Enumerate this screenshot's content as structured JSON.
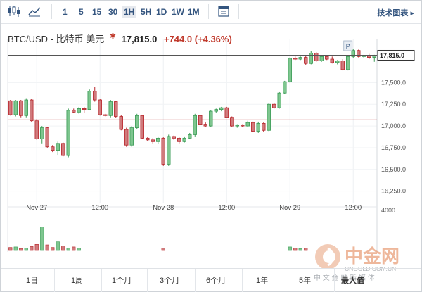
{
  "toolbar": {
    "candle_icon": "candlestick-icon",
    "area_icon": "area-chart-icon",
    "intervals": [
      "1",
      "5",
      "15",
      "30",
      "1H",
      "5H",
      "1D",
      "1W",
      "1M"
    ],
    "active_interval": "1H",
    "calendar_icon": "calendar-icon",
    "tech_label": "技术图表 ▸"
  },
  "header": {
    "ticker": "BTC/USD - 比特币 美元",
    "price": "17,815.0",
    "change": "+744.0",
    "change_pct": "(+4.36%)"
  },
  "colors": {
    "up": "#3a9b55",
    "down": "#b8262b",
    "up_fill": "#7ec68f",
    "down_fill": "#d07a7c"
  },
  "chart_data": {
    "type": "candlestick",
    "ylim": [
      16150,
      17900
    ],
    "y_ticks": [
      "17,500.0",
      "17,250.0",
      "17,000.0",
      "16,750.0",
      "16,500.0",
      "16,250.0"
    ],
    "y_tick_values": [
      17500,
      17250,
      17000,
      16750,
      16500,
      16250
    ],
    "x_ticks": [
      "Nov 27",
      "12:00",
      "Nov 28",
      "12:00",
      "Nov 29",
      "12:00"
    ],
    "x_tick_index": [
      5,
      17,
      29,
      41,
      53,
      65
    ],
    "last_price_label": "17,815.0",
    "last_price": 17815,
    "reference_price": 17071,
    "marker_label": "P",
    "marker_index": 64,
    "volume_axis_label": "4000",
    "volume_max": 4000,
    "candles": [
      [
        17290,
        17300,
        17120,
        17130
      ],
      [
        17130,
        17300,
        17110,
        17290
      ],
      [
        17290,
        17300,
        17100,
        17120
      ],
      [
        17120,
        17320,
        17100,
        17300
      ],
      [
        17300,
        17310,
        17050,
        17060
      ],
      [
        17060,
        17080,
        16840,
        16850
      ],
      [
        16850,
        17000,
        16800,
        16980
      ],
      [
        16980,
        16990,
        16750,
        16760
      ],
      [
        16760,
        16780,
        16700,
        16720
      ],
      [
        16720,
        16820,
        16660,
        16800
      ],
      [
        16800,
        16810,
        16650,
        16660
      ],
      [
        16660,
        17200,
        16640,
        17180
      ],
      [
        17180,
        17200,
        17150,
        17160
      ],
      [
        17160,
        17220,
        17140,
        17200
      ],
      [
        17200,
        17220,
        17150,
        17190
      ],
      [
        17190,
        17420,
        17180,
        17400
      ],
      [
        17400,
        17450,
        17280,
        17300
      ],
      [
        17300,
        17310,
        17120,
        17130
      ],
      [
        17130,
        17140,
        17110,
        17120
      ],
      [
        17120,
        17300,
        17100,
        17280
      ],
      [
        17280,
        17290,
        17090,
        17110
      ],
      [
        17110,
        17130,
        16950,
        16960
      ],
      [
        16960,
        16980,
        16760,
        16780
      ],
      [
        16780,
        17000,
        16760,
        16980
      ],
      [
        16980,
        17140,
        16960,
        17120
      ],
      [
        17120,
        17130,
        16850,
        16860
      ],
      [
        16860,
        16870,
        16830,
        16840
      ],
      [
        16840,
        16860,
        16800,
        16820
      ],
      [
        16820,
        16880,
        16790,
        16860
      ],
      [
        16860,
        16870,
        16540,
        16560
      ],
      [
        16560,
        16900,
        16540,
        16880
      ],
      [
        16880,
        16890,
        16840,
        16860
      ],
      [
        16860,
        16870,
        16800,
        16820
      ],
      [
        16820,
        16880,
        16810,
        16860
      ],
      [
        16860,
        16920,
        16850,
        16900
      ],
      [
        16900,
        17140,
        16880,
        17120
      ],
      [
        17120,
        17130,
        17010,
        17020
      ],
      [
        17020,
        17040,
        16990,
        17000
      ],
      [
        17000,
        17180,
        16990,
        17170
      ],
      [
        17170,
        17200,
        17150,
        17190
      ],
      [
        17190,
        17220,
        17170,
        17210
      ],
      [
        17210,
        17220,
        17090,
        17100
      ],
      [
        17100,
        17110,
        16990,
        17000
      ],
      [
        17000,
        17020,
        16980,
        17010
      ],
      [
        17010,
        17020,
        16990,
        17000
      ],
      [
        17000,
        17060,
        16990,
        17040
      ],
      [
        17040,
        17050,
        16930,
        16940
      ],
      [
        16940,
        17050,
        16920,
        17030
      ],
      [
        17030,
        17040,
        16930,
        16950
      ],
      [
        16950,
        17260,
        16940,
        17250
      ],
      [
        17250,
        17260,
        17200,
        17210
      ],
      [
        17210,
        17390,
        17200,
        17380
      ],
      [
        17380,
        17520,
        17370,
        17510
      ],
      [
        17510,
        17790,
        17500,
        17780
      ],
      [
        17780,
        17800,
        17760,
        17770
      ],
      [
        17770,
        17800,
        17760,
        17790
      ],
      [
        17790,
        17810,
        17700,
        17720
      ],
      [
        17720,
        17860,
        17710,
        17840
      ],
      [
        17840,
        17850,
        17740,
        17750
      ],
      [
        17750,
        17810,
        17740,
        17800
      ],
      [
        17800,
        17810,
        17760,
        17770
      ],
      [
        17770,
        17800,
        17720,
        17730
      ],
      [
        17730,
        17760,
        17710,
        17750
      ],
      [
        17750,
        17770,
        17640,
        17650
      ],
      [
        17650,
        17810,
        17640,
        17800
      ],
      [
        17800,
        17890,
        17780,
        17870
      ],
      [
        17870,
        17880,
        17790,
        17800
      ],
      [
        17800,
        17820,
        17780,
        17810
      ],
      [
        17810,
        17830,
        17770,
        17790
      ],
      [
        17790,
        17820,
        17740,
        17815
      ]
    ],
    "volume": [
      {
        "i": 0,
        "v": 300
      },
      {
        "i": 1,
        "v": 350
      },
      {
        "i": 2,
        "v": 200
      },
      {
        "i": 3,
        "v": 250
      },
      {
        "i": 4,
        "v": 400
      },
      {
        "i": 5,
        "v": 600
      },
      {
        "i": 6,
        "v": 2300
      },
      {
        "i": 7,
        "v": 550
      },
      {
        "i": 8,
        "v": 300
      },
      {
        "i": 9,
        "v": 850
      },
      {
        "i": 10,
        "v": 450
      },
      {
        "i": 11,
        "v": 250
      },
      {
        "i": 12,
        "v": 350
      },
      {
        "i": 13,
        "v": 250
      },
      {
        "i": 29,
        "v": 250
      },
      {
        "i": 53,
        "v": 350
      },
      {
        "i": 54,
        "v": 250
      },
      {
        "i": 55,
        "v": 200
      },
      {
        "i": 56,
        "v": 250
      }
    ]
  },
  "range_buttons": [
    "1日",
    "1周",
    "1个月",
    "3个月",
    "6个月",
    "1年",
    "5年",
    "最大值"
  ],
  "active_range": "最大值",
  "watermark": {
    "icon": "zhongjin-logo-icon",
    "name": "中金网",
    "domain": "CNGOLD.COM.CN",
    "slogan": "中 文 金 融 新 媒 体"
  }
}
